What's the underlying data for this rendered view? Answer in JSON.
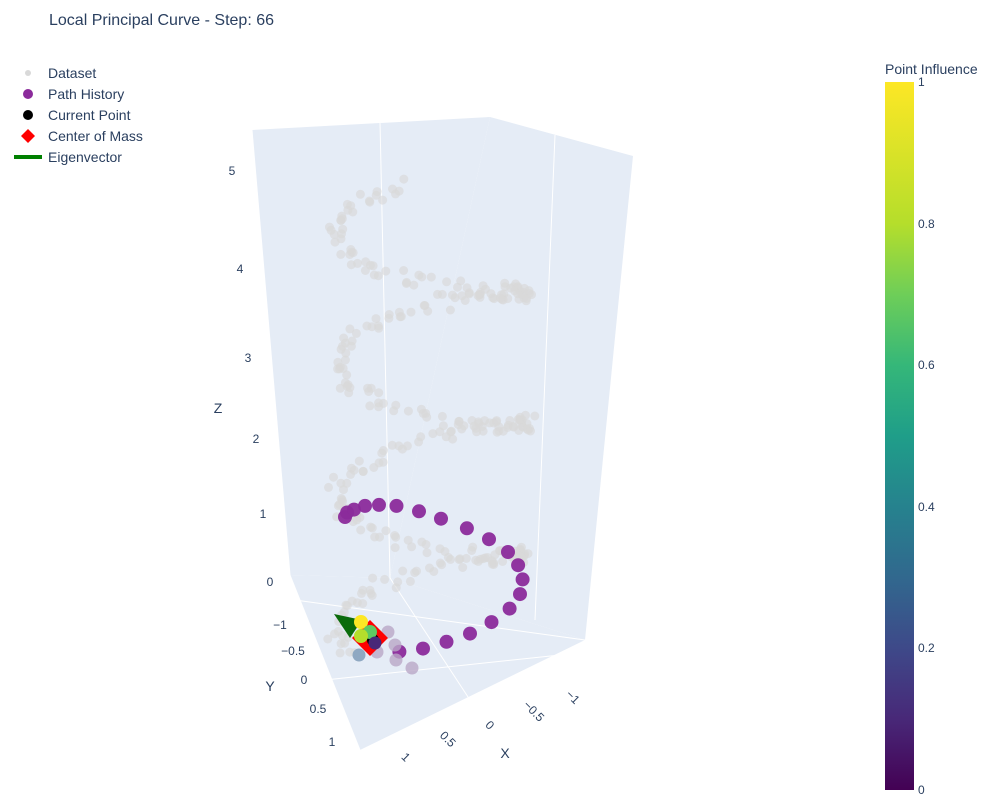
{
  "chart_data": {
    "type": "scatter",
    "title": "Local Principal Curve - Step: 66",
    "legend": {
      "placement": "top-left",
      "items": [
        {
          "name": "Dataset",
          "symbol": "circle",
          "color": "#d9d9d9"
        },
        {
          "name": "Path History",
          "symbol": "circle",
          "color": "#8b2b9b"
        },
        {
          "name": "Current Point",
          "symbol": "circle",
          "color": "#000000"
        },
        {
          "name": "Center of Mass",
          "symbol": "diamond",
          "color": "#ff0000"
        },
        {
          "name": "Eigenvector",
          "symbol": "line",
          "color": "#008000"
        }
      ]
    },
    "axes": {
      "x": {
        "label": "X",
        "ticks": [
          "1",
          "0.5",
          "0",
          "−0.5",
          "−1"
        ]
      },
      "y": {
        "label": "Y",
        "ticks": [
          "−1",
          "−0.5",
          "0",
          "0.5",
          "1"
        ]
      },
      "z": {
        "label": "Z",
        "ticks": [
          "0",
          "1",
          "2",
          "3",
          "4",
          "5"
        ]
      }
    },
    "colorbar": {
      "title": "Point Influence",
      "colorscale": "viridis",
      "range": [
        0,
        1
      ],
      "ticks": [
        "0",
        "0.2",
        "0.4",
        "0.6",
        "0.8",
        "1"
      ]
    },
    "helix_description": {
      "turns_between_z": [
        0,
        5.3
      ],
      "radius": 1
    },
    "path_history": [
      {
        "x": 0.9,
        "y": 0.3,
        "z": 1.55
      },
      {
        "x": 0.78,
        "y": 0.45,
        "z": 1.55
      },
      {
        "x": 0.6,
        "y": 0.6,
        "z": 1.52
      },
      {
        "x": 0.35,
        "y": 0.78,
        "z": 1.48
      },
      {
        "x": 0.1,
        "y": 0.9,
        "z": 1.42
      },
      {
        "x": -0.15,
        "y": 0.95,
        "z": 1.35
      },
      {
        "x": -0.4,
        "y": 0.9,
        "z": 1.25
      },
      {
        "x": -0.6,
        "y": 0.78,
        "z": 1.15
      },
      {
        "x": -0.78,
        "y": 0.55,
        "z": 1.05
      },
      {
        "x": -0.9,
        "y": 0.3,
        "z": 0.95
      },
      {
        "x": -0.95,
        "y": 0.0,
        "z": 0.85
      },
      {
        "x": -0.92,
        "y": -0.25,
        "z": 0.75
      },
      {
        "x": -0.82,
        "y": -0.5,
        "z": 0.65
      },
      {
        "x": -0.65,
        "y": -0.72,
        "z": 0.55
      },
      {
        "x": -0.42,
        "y": -0.88,
        "z": 0.45
      },
      {
        "x": -0.15,
        "y": -0.95,
        "z": 0.35
      },
      {
        "x": 0.1,
        "y": -0.92,
        "z": 0.25
      },
      {
        "x": 0.35,
        "y": -0.85,
        "z": 0.18
      },
      {
        "x": 0.55,
        "y": -0.7,
        "z": 0.1
      },
      {
        "x": 0.72,
        "y": -0.5,
        "z": 0.05
      }
    ],
    "current_point": {
      "x": 0.85,
      "y": -0.3,
      "z": 0.0
    },
    "center_of_mass": {
      "x": 0.85,
      "y": -0.3,
      "z": 0.0
    },
    "eigenvector": {
      "from": {
        "x": 0.85,
        "y": -0.3,
        "z": 0.0
      },
      "to": {
        "x": 0.95,
        "y": -0.8,
        "z": 0.1
      }
    },
    "neighborhood_points": [
      {
        "influence": 1.0
      },
      {
        "influence": 0.85
      },
      {
        "influence": 0.7
      },
      {
        "influence": 0.45
      },
      {
        "influence": 0.3
      },
      {
        "influence": 0.15
      },
      {
        "influence": 0.1
      },
      {
        "influence": 0.05
      },
      {
        "influence": 0.02
      }
    ]
  }
}
